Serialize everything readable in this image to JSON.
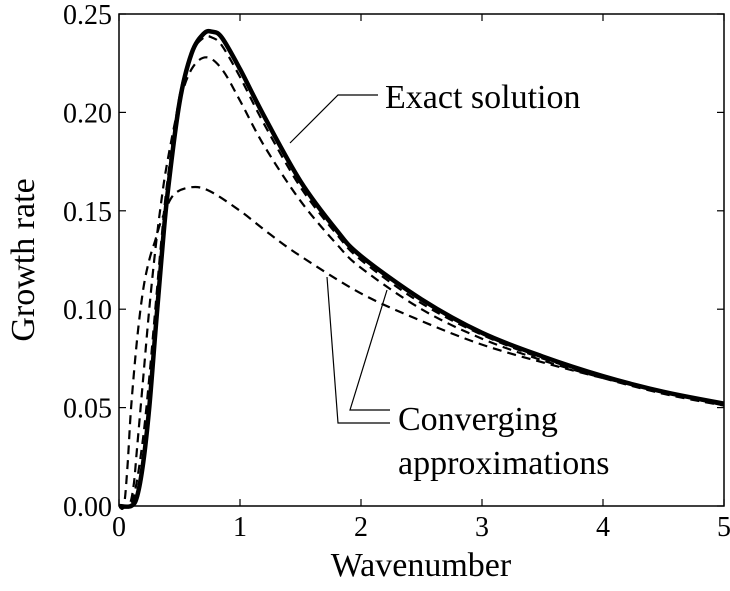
{
  "chart_data": {
    "type": "line",
    "title": "",
    "xlabel": "Wavenumber",
    "ylabel": "Growth rate",
    "xlim": [
      0,
      5
    ],
    "ylim": [
      0,
      0.25
    ],
    "xticks": [
      "0",
      "1",
      "2",
      "3",
      "4",
      "5"
    ],
    "yticks": [
      "0.00",
      "0.05",
      "0.10",
      "0.15",
      "0.20",
      "0.25"
    ],
    "grid": false,
    "annotations": {
      "exact": "Exact solution",
      "approx_line1": "Converging",
      "approx_line2": "approximations"
    },
    "series": [
      {
        "style": "solid",
        "x": [
          0,
          0.1,
          0.15,
          0.2,
          0.25,
          0.3,
          0.35,
          0.4,
          0.5,
          0.6,
          0.7,
          0.77,
          0.85,
          1.0,
          1.2,
          1.5,
          1.8,
          2,
          2.5,
          3,
          3.5,
          4,
          4.5,
          5
        ],
        "y": [
          0,
          0,
          0.005,
          0.022,
          0.05,
          0.088,
          0.125,
          0.158,
          0.205,
          0.23,
          0.24,
          0.241,
          0.238,
          0.222,
          0.198,
          0.165,
          0.14,
          0.127,
          0.105,
          0.088,
          0.076,
          0.066,
          0.058,
          0.052
        ]
      },
      {
        "style": "dashed",
        "x": [
          0,
          0.09,
          0.14,
          0.2,
          0.25,
          0.3,
          0.35,
          0.4,
          0.5,
          0.6,
          0.7,
          0.77,
          0.85,
          1,
          1.2,
          1.5,
          1.8,
          2,
          2.5,
          3,
          3.5,
          4,
          4.5,
          5
        ],
        "y": [
          0,
          0,
          0.01,
          0.035,
          0.065,
          0.1,
          0.135,
          0.165,
          0.208,
          0.23,
          0.238,
          0.238,
          0.234,
          0.218,
          0.194,
          0.162,
          0.138,
          0.125,
          0.103,
          0.087,
          0.075,
          0.066,
          0.058,
          0.052
        ]
      },
      {
        "style": "dashed",
        "x": [
          0,
          0.08,
          0.12,
          0.15,
          0.2,
          0.25,
          0.3,
          0.35,
          0.4,
          0.5,
          0.6,
          0.72,
          0.85,
          1,
          1.2,
          1.5,
          1.8,
          2,
          2.5,
          3,
          3.5,
          4,
          4.5,
          5
        ],
        "y": [
          0,
          0,
          0.01,
          0.03,
          0.065,
          0.1,
          0.13,
          0.155,
          0.175,
          0.205,
          0.222,
          0.228,
          0.222,
          0.206,
          0.183,
          0.155,
          0.133,
          0.121,
          0.1,
          0.085,
          0.074,
          0.065,
          0.057,
          0.051
        ]
      },
      {
        "style": "dashed",
        "x": [
          0,
          0.04,
          0.07,
          0.1,
          0.15,
          0.2,
          0.25,
          0.3,
          0.35,
          0.45,
          0.6,
          0.75,
          1,
          1.25,
          1.5,
          2,
          2.5,
          3,
          3.5,
          4,
          4.5,
          5
        ],
        "y": [
          0,
          0,
          0.02,
          0.05,
          0.085,
          0.11,
          0.125,
          0.135,
          0.145,
          0.158,
          0.162,
          0.16,
          0.15,
          0.138,
          0.127,
          0.108,
          0.094,
          0.082,
          0.073,
          0.065,
          0.058,
          0.051
        ]
      }
    ]
  }
}
